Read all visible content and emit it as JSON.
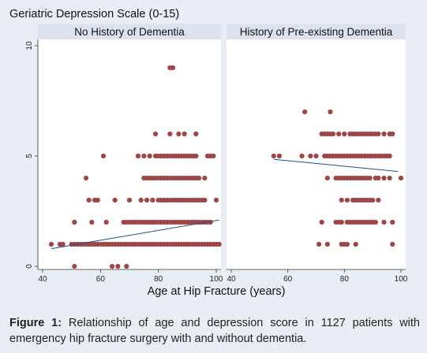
{
  "chart_data": {
    "type": "scatter",
    "title": "Geriatric Depression Scale (0-15)",
    "xlabel": "Age at Hip Fracture (years)",
    "xlim": [
      40,
      100
    ],
    "ylim": [
      0,
      10
    ],
    "x_ticks": [
      40,
      60,
      80,
      100
    ],
    "y_ticks": [
      0,
      5,
      10
    ],
    "point_color": "#a04545",
    "line_color": "#1f4e8c",
    "panels": [
      {
        "label": "No History of Dementia",
        "points": [
          [
            84,
            9
          ],
          [
            85,
            9
          ],
          [
            79,
            6
          ],
          [
            84,
            6
          ],
          [
            87,
            6
          ],
          [
            89,
            6
          ],
          [
            93,
            6
          ],
          [
            61,
            5
          ],
          [
            73,
            5
          ],
          [
            75,
            5
          ],
          [
            77,
            5
          ],
          [
            79,
            5
          ],
          [
            80,
            5
          ],
          [
            81,
            5
          ],
          [
            82,
            5
          ],
          [
            83,
            5
          ],
          [
            84,
            5
          ],
          [
            85,
            5
          ],
          [
            86,
            5
          ],
          [
            87,
            5
          ],
          [
            88,
            5
          ],
          [
            89,
            5
          ],
          [
            90,
            5
          ],
          [
            91,
            5
          ],
          [
            92,
            5
          ],
          [
            93,
            5
          ],
          [
            97,
            5
          ],
          [
            98,
            5
          ],
          [
            99,
            5
          ],
          [
            55,
            4
          ],
          [
            75,
            4
          ],
          [
            76,
            4
          ],
          [
            77,
            4
          ],
          [
            78,
            4
          ],
          [
            79,
            4
          ],
          [
            80,
            4
          ],
          [
            81,
            4
          ],
          [
            82,
            4
          ],
          [
            83,
            4
          ],
          [
            84,
            4
          ],
          [
            85,
            4
          ],
          [
            86,
            4
          ],
          [
            87,
            4
          ],
          [
            88,
            4
          ],
          [
            89,
            4
          ],
          [
            90,
            4
          ],
          [
            91,
            4
          ],
          [
            92,
            4
          ],
          [
            93,
            4
          ],
          [
            94,
            4
          ],
          [
            96,
            4
          ],
          [
            56,
            3
          ],
          [
            58,
            3
          ],
          [
            59,
            3
          ],
          [
            65,
            3
          ],
          [
            70,
            3
          ],
          [
            74,
            3
          ],
          [
            76,
            3
          ],
          [
            78,
            3
          ],
          [
            80,
            3
          ],
          [
            81,
            3
          ],
          [
            82,
            3
          ],
          [
            83,
            3
          ],
          [
            84,
            3
          ],
          [
            85,
            3
          ],
          [
            86,
            3
          ],
          [
            87,
            3
          ],
          [
            88,
            3
          ],
          [
            89,
            3
          ],
          [
            90,
            3
          ],
          [
            91,
            3
          ],
          [
            92,
            3
          ],
          [
            93,
            3
          ],
          [
            94,
            3
          ],
          [
            95,
            3
          ],
          [
            96,
            3
          ],
          [
            100,
            3
          ],
          [
            51,
            2
          ],
          [
            57,
            2
          ],
          [
            62,
            2
          ],
          [
            68,
            2
          ],
          [
            69,
            2
          ],
          [
            70,
            2
          ],
          [
            71,
            2
          ],
          [
            72,
            2
          ],
          [
            73,
            2
          ],
          [
            74,
            2
          ],
          [
            75,
            2
          ],
          [
            76,
            2
          ],
          [
            77,
            2
          ],
          [
            78,
            2
          ],
          [
            79,
            2
          ],
          [
            80,
            2
          ],
          [
            81,
            2
          ],
          [
            82,
            2
          ],
          [
            83,
            2
          ],
          [
            84,
            2
          ],
          [
            85,
            2
          ],
          [
            86,
            2
          ],
          [
            87,
            2
          ],
          [
            88,
            2
          ],
          [
            89,
            2
          ],
          [
            90,
            2
          ],
          [
            91,
            2
          ],
          [
            92,
            2
          ],
          [
            93,
            2
          ],
          [
            94,
            2
          ],
          [
            95,
            2
          ],
          [
            96,
            2
          ],
          [
            97,
            2
          ],
          [
            98,
            2
          ],
          [
            43,
            1
          ],
          [
            46,
            1
          ],
          [
            47,
            1
          ],
          [
            50,
            1
          ],
          [
            51,
            1
          ],
          [
            52,
            1
          ],
          [
            53,
            1
          ],
          [
            54,
            1
          ],
          [
            55,
            1
          ],
          [
            56,
            1
          ],
          [
            57,
            1
          ],
          [
            58,
            1
          ],
          [
            59,
            1
          ],
          [
            60,
            1
          ],
          [
            61,
            1
          ],
          [
            62,
            1
          ],
          [
            63,
            1
          ],
          [
            64,
            1
          ],
          [
            65,
            1
          ],
          [
            66,
            1
          ],
          [
            67,
            1
          ],
          [
            68,
            1
          ],
          [
            69,
            1
          ],
          [
            70,
            1
          ],
          [
            71,
            1
          ],
          [
            72,
            1
          ],
          [
            73,
            1
          ],
          [
            74,
            1
          ],
          [
            75,
            1
          ],
          [
            76,
            1
          ],
          [
            77,
            1
          ],
          [
            78,
            1
          ],
          [
            79,
            1
          ],
          [
            80,
            1
          ],
          [
            81,
            1
          ],
          [
            82,
            1
          ],
          [
            83,
            1
          ],
          [
            84,
            1
          ],
          [
            85,
            1
          ],
          [
            86,
            1
          ],
          [
            87,
            1
          ],
          [
            88,
            1
          ],
          [
            89,
            1
          ],
          [
            90,
            1
          ],
          [
            91,
            1
          ],
          [
            92,
            1
          ],
          [
            93,
            1
          ],
          [
            94,
            1
          ],
          [
            95,
            1
          ],
          [
            96,
            1
          ],
          [
            97,
            1
          ],
          [
            98,
            1
          ],
          [
            99,
            1
          ],
          [
            100,
            1
          ],
          [
            101,
            1
          ],
          [
            51,
            0
          ],
          [
            64,
            0
          ],
          [
            66,
            0
          ],
          [
            69,
            0
          ]
        ],
        "fit_line": [
          [
            43,
            0.8
          ],
          [
            101,
            2.1
          ]
        ]
      },
      {
        "label": "History of Pre-existing Dementia",
        "points": [
          [
            66,
            7
          ],
          [
            75,
            7
          ],
          [
            72,
            6
          ],
          [
            73,
            6
          ],
          [
            74,
            6
          ],
          [
            75,
            6
          ],
          [
            76,
            6
          ],
          [
            78,
            6
          ],
          [
            80,
            6
          ],
          [
            82,
            6
          ],
          [
            83,
            6
          ],
          [
            84,
            6
          ],
          [
            85,
            6
          ],
          [
            86,
            6
          ],
          [
            87,
            6
          ],
          [
            88,
            6
          ],
          [
            89,
            6
          ],
          [
            90,
            6
          ],
          [
            91,
            6
          ],
          [
            92,
            6
          ],
          [
            94,
            6
          ],
          [
            96,
            6
          ],
          [
            97,
            6
          ],
          [
            55,
            5
          ],
          [
            57,
            5
          ],
          [
            65,
            5
          ],
          [
            68,
            5
          ],
          [
            70,
            5
          ],
          [
            73,
            5
          ],
          [
            74,
            5
          ],
          [
            75,
            5
          ],
          [
            76,
            5
          ],
          [
            77,
            5
          ],
          [
            78,
            5
          ],
          [
            79,
            5
          ],
          [
            80,
            5
          ],
          [
            81,
            5
          ],
          [
            82,
            5
          ],
          [
            83,
            5
          ],
          [
            84,
            5
          ],
          [
            85,
            5
          ],
          [
            86,
            5
          ],
          [
            87,
            5
          ],
          [
            88,
            5
          ],
          [
            89,
            5
          ],
          [
            90,
            5
          ],
          [
            91,
            5
          ],
          [
            92,
            5
          ],
          [
            93,
            5
          ],
          [
            94,
            5
          ],
          [
            95,
            5
          ],
          [
            96,
            5
          ],
          [
            74,
            4
          ],
          [
            77,
            4
          ],
          [
            78,
            4
          ],
          [
            79,
            4
          ],
          [
            80,
            4
          ],
          [
            81,
            4
          ],
          [
            82,
            4
          ],
          [
            83,
            4
          ],
          [
            84,
            4
          ],
          [
            85,
            4
          ],
          [
            86,
            4
          ],
          [
            87,
            4
          ],
          [
            88,
            4
          ],
          [
            89,
            4
          ],
          [
            91,
            4
          ],
          [
            92,
            4
          ],
          [
            94,
            4
          ],
          [
            96,
            4
          ],
          [
            100,
            4
          ],
          [
            79,
            3
          ],
          [
            81,
            3
          ],
          [
            83,
            3
          ],
          [
            84,
            3
          ],
          [
            85,
            3
          ],
          [
            86,
            3
          ],
          [
            87,
            3
          ],
          [
            88,
            3
          ],
          [
            89,
            3
          ],
          [
            90,
            3
          ],
          [
            92,
            3
          ],
          [
            72,
            2
          ],
          [
            77,
            2
          ],
          [
            78,
            2
          ],
          [
            79,
            2
          ],
          [
            81,
            2
          ],
          [
            82,
            2
          ],
          [
            83,
            2
          ],
          [
            84,
            2
          ],
          [
            85,
            2
          ],
          [
            86,
            2
          ],
          [
            87,
            2
          ],
          [
            88,
            2
          ],
          [
            89,
            2
          ],
          [
            90,
            2
          ],
          [
            91,
            2
          ],
          [
            94,
            2
          ],
          [
            97,
            2
          ],
          [
            71,
            1
          ],
          [
            74,
            1
          ],
          [
            79,
            1
          ],
          [
            80,
            1
          ],
          [
            81,
            1
          ],
          [
            84,
            1
          ],
          [
            97,
            1
          ]
        ],
        "fit_line": [
          [
            55,
            4.85
          ],
          [
            99,
            4.3
          ]
        ]
      }
    ]
  },
  "caption": {
    "label": "Figure 1:",
    "text": " Relationship of age and depression score in 1127 patients with emergency hip fracture surgery with and without dementia."
  }
}
